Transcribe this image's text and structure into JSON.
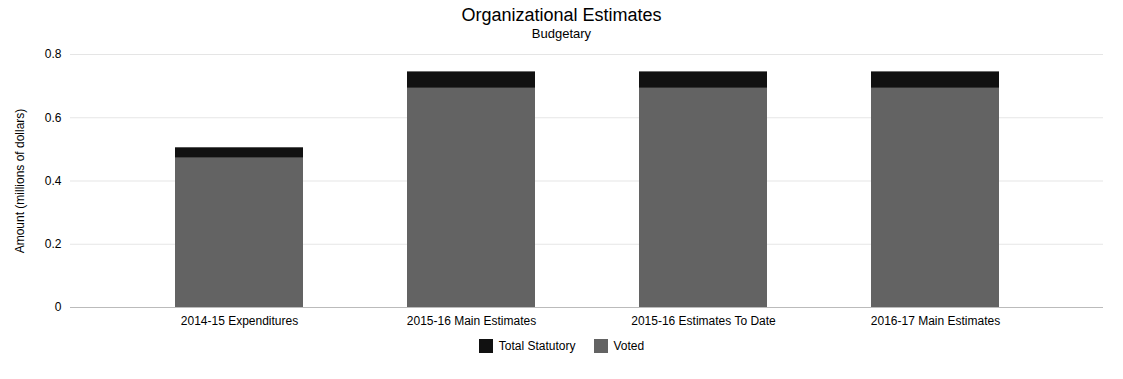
{
  "chart_data": {
    "type": "bar",
    "stacked": true,
    "title": "Organizational Estimates",
    "subtitle": "Budgetary",
    "ylabel": "Amount (millions of dollars)",
    "categories": [
      "2014-15 Expenditures",
      "2015-16 Main Estimates",
      "2015-16 Estimates To Date",
      "2016-17 Main Estimates"
    ],
    "series": [
      {
        "name": "Voted",
        "color": "#636363",
        "values": [
          0.472,
          0.693,
          0.693,
          0.693
        ]
      },
      {
        "name": "Total Statutory",
        "color": "#111111",
        "values": [
          0.033,
          0.052,
          0.052,
          0.052
        ]
      }
    ],
    "ylim": [
      0,
      0.8
    ],
    "yticks": [
      0,
      0.2,
      0.4,
      0.6,
      0.8
    ],
    "grid": true,
    "legend": "bottom"
  }
}
